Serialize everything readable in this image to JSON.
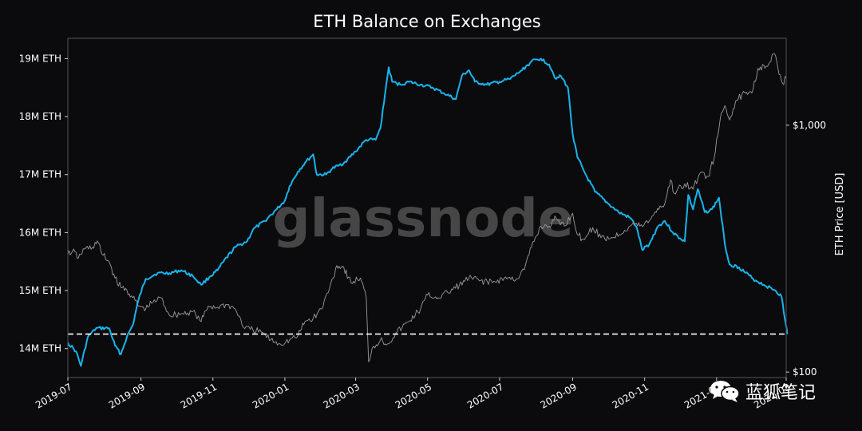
{
  "chart_data": {
    "type": "line",
    "title": "ETH Balance on Exchanges",
    "brand_watermark": "glassnode",
    "ylabel_left": "",
    "ylabel_right": "ETH Price [USD]",
    "y_left_ticks": [
      "14M ETH",
      "15M ETH",
      "16M ETH",
      "17M ETH",
      "18M ETH",
      "19M ETH"
    ],
    "y_left_tick_values": [
      14000000,
      15000000,
      16000000,
      17000000,
      18000000,
      19000000
    ],
    "y_left_range": [
      13500000,
      19350000
    ],
    "y_right_ticks": [
      "$100",
      "$1,000"
    ],
    "y_right_tick_values": [
      100,
      1000
    ],
    "y_right_scale": "log",
    "y_right_range": [
      95,
      2250
    ],
    "x_ticks": [
      "2019-07",
      "2019-09",
      "2019-11",
      "2020-01",
      "2020-03",
      "2020-05",
      "2020-07",
      "2020-09",
      "2020-11",
      "2021-01",
      "2021-03"
    ],
    "x_tick_dates": [
      "2019-07-01",
      "2019-09-01",
      "2019-11-01",
      "2020-01-01",
      "2020-03-01",
      "2020-05-01",
      "2020-07-01",
      "2020-09-01",
      "2020-11-01",
      "2021-01-01",
      "2021-03-01"
    ],
    "x_range": [
      "2019-07-01",
      "2021-03-01"
    ],
    "reference_line": {
      "value": 14250000,
      "style": "dashed",
      "color": "#ffffff"
    },
    "grid": false,
    "series": [
      {
        "axis": "left",
        "color": "#18b4ec",
        "points": [
          [
            "2019-07-01",
            14100000
          ],
          [
            "2019-07-08",
            13950000
          ],
          [
            "2019-07-12",
            13700000
          ],
          [
            "2019-07-18",
            14200000
          ],
          [
            "2019-07-25",
            14350000
          ],
          [
            "2019-08-05",
            14350000
          ],
          [
            "2019-08-10",
            14050000
          ],
          [
            "2019-08-15",
            13900000
          ],
          [
            "2019-08-20",
            14200000
          ],
          [
            "2019-08-25",
            14400000
          ],
          [
            "2019-08-30",
            14850000
          ],
          [
            "2019-09-05",
            15200000
          ],
          [
            "2019-09-15",
            15300000
          ],
          [
            "2019-09-25",
            15300000
          ],
          [
            "2019-10-05",
            15350000
          ],
          [
            "2019-10-15",
            15250000
          ],
          [
            "2019-10-22",
            15100000
          ],
          [
            "2019-10-30",
            15250000
          ],
          [
            "2019-11-05",
            15350000
          ],
          [
            "2019-11-10",
            15500000
          ],
          [
            "2019-11-20",
            15750000
          ],
          [
            "2019-11-30",
            15850000
          ],
          [
            "2019-12-05",
            16050000
          ],
          [
            "2019-12-15",
            16200000
          ],
          [
            "2019-12-25",
            16400000
          ],
          [
            "2020-01-01",
            16550000
          ],
          [
            "2020-01-05",
            16800000
          ],
          [
            "2020-01-12",
            17050000
          ],
          [
            "2020-01-18",
            17200000
          ],
          [
            "2020-01-25",
            17350000
          ],
          [
            "2020-01-28",
            17000000
          ],
          [
            "2020-02-05",
            17000000
          ],
          [
            "2020-02-10",
            17100000
          ],
          [
            "2020-02-15",
            17150000
          ],
          [
            "2020-02-20",
            17200000
          ],
          [
            "2020-03-01",
            17400000
          ],
          [
            "2020-03-10",
            17600000
          ],
          [
            "2020-03-18",
            17600000
          ],
          [
            "2020-03-22",
            17800000
          ],
          [
            "2020-03-26",
            18400000
          ],
          [
            "2020-03-29",
            18850000
          ],
          [
            "2020-04-01",
            18600000
          ],
          [
            "2020-04-08",
            18550000
          ],
          [
            "2020-04-15",
            18600000
          ],
          [
            "2020-04-25",
            18550000
          ],
          [
            "2020-05-05",
            18500000
          ],
          [
            "2020-05-15",
            18400000
          ],
          [
            "2020-05-25",
            18300000
          ],
          [
            "2020-05-30",
            18700000
          ],
          [
            "2020-06-05",
            18800000
          ],
          [
            "2020-06-10",
            18600000
          ],
          [
            "2020-06-20",
            18550000
          ],
          [
            "2020-07-01",
            18600000
          ],
          [
            "2020-07-10",
            18650000
          ],
          [
            "2020-07-20",
            18800000
          ],
          [
            "2020-07-28",
            18950000
          ],
          [
            "2020-08-05",
            19000000
          ],
          [
            "2020-08-12",
            18900000
          ],
          [
            "2020-08-18",
            18650000
          ],
          [
            "2020-08-22",
            18700000
          ],
          [
            "2020-08-28",
            18500000
          ],
          [
            "2020-09-01",
            17700000
          ],
          [
            "2020-09-05",
            17300000
          ],
          [
            "2020-09-12",
            17000000
          ],
          [
            "2020-09-20",
            16700000
          ],
          [
            "2020-10-01",
            16500000
          ],
          [
            "2020-10-10",
            16350000
          ],
          [
            "2020-10-20",
            16250000
          ],
          [
            "2020-10-25",
            16100000
          ],
          [
            "2020-10-30",
            15700000
          ],
          [
            "2020-11-05",
            15800000
          ],
          [
            "2020-11-12",
            16100000
          ],
          [
            "2020-11-18",
            16200000
          ],
          [
            "2020-11-25",
            16000000
          ],
          [
            "2020-12-01",
            15900000
          ],
          [
            "2020-12-05",
            15850000
          ],
          [
            "2020-12-08",
            16650000
          ],
          [
            "2020-12-12",
            16400000
          ],
          [
            "2020-12-16",
            16750000
          ],
          [
            "2020-12-22",
            16350000
          ],
          [
            "2020-12-28",
            16400000
          ],
          [
            "2021-01-03",
            16600000
          ],
          [
            "2021-01-08",
            15800000
          ],
          [
            "2021-01-12",
            15450000
          ],
          [
            "2021-01-20",
            15400000
          ],
          [
            "2021-02-01",
            15200000
          ],
          [
            "2021-02-10",
            15100000
          ],
          [
            "2021-02-20",
            15000000
          ],
          [
            "2021-02-25",
            14900000
          ],
          [
            "2021-02-28",
            14500000
          ],
          [
            "2021-03-02",
            14250000
          ]
        ]
      },
      {
        "axis": "right",
        "color": "#9a9a9a",
        "points": [
          [
            "2019-07-01",
            300
          ],
          [
            "2019-07-05",
            310
          ],
          [
            "2019-07-10",
            290
          ],
          [
            "2019-07-15",
            315
          ],
          [
            "2019-07-22",
            320
          ],
          [
            "2019-07-26",
            340
          ],
          [
            "2019-07-30",
            300
          ],
          [
            "2019-08-05",
            280
          ],
          [
            "2019-08-10",
            240
          ],
          [
            "2019-08-15",
            220
          ],
          [
            "2019-08-20",
            215
          ],
          [
            "2019-08-25",
            200
          ],
          [
            "2019-08-30",
            185
          ],
          [
            "2019-09-05",
            180
          ],
          [
            "2019-09-10",
            190
          ],
          [
            "2019-09-18",
            200
          ],
          [
            "2019-09-25",
            170
          ],
          [
            "2019-10-05",
            172
          ],
          [
            "2019-10-15",
            176
          ],
          [
            "2019-10-22",
            160
          ],
          [
            "2019-10-28",
            185
          ],
          [
            "2019-11-05",
            183
          ],
          [
            "2019-11-12",
            188
          ],
          [
            "2019-11-20",
            180
          ],
          [
            "2019-11-28",
            150
          ],
          [
            "2019-12-05",
            148
          ],
          [
            "2019-12-12",
            145
          ],
          [
            "2019-12-20",
            135
          ],
          [
            "2019-12-28",
            130
          ],
          [
            "2020-01-05",
            135
          ],
          [
            "2020-01-12",
            140
          ],
          [
            "2020-01-18",
            160
          ],
          [
            "2020-01-25",
            165
          ],
          [
            "2020-02-01",
            180
          ],
          [
            "2020-02-08",
            220
          ],
          [
            "2020-02-14",
            270
          ],
          [
            "2020-02-20",
            265
          ],
          [
            "2020-02-26",
            230
          ],
          [
            "2020-03-05",
            240
          ],
          [
            "2020-03-10",
            200
          ],
          [
            "2020-03-12",
            110
          ],
          [
            "2020-03-15",
            125
          ],
          [
            "2020-03-22",
            135
          ],
          [
            "2020-03-28",
            130
          ],
          [
            "2020-04-05",
            145
          ],
          [
            "2020-04-15",
            160
          ],
          [
            "2020-04-25",
            180
          ],
          [
            "2020-05-01",
            205
          ],
          [
            "2020-05-10",
            200
          ],
          [
            "2020-05-18",
            210
          ],
          [
            "2020-05-28",
            225
          ],
          [
            "2020-06-05",
            240
          ],
          [
            "2020-06-15",
            235
          ],
          [
            "2020-06-25",
            230
          ],
          [
            "2020-07-05",
            240
          ],
          [
            "2020-07-15",
            238
          ],
          [
            "2020-07-22",
            260
          ],
          [
            "2020-07-28",
            320
          ],
          [
            "2020-08-05",
            390
          ],
          [
            "2020-08-12",
            390
          ],
          [
            "2020-08-18",
            420
          ],
          [
            "2020-08-25",
            390
          ],
          [
            "2020-09-01",
            440
          ],
          [
            "2020-09-05",
            360
          ],
          [
            "2020-09-10",
            345
          ],
          [
            "2020-09-18",
            385
          ],
          [
            "2020-09-25",
            350
          ],
          [
            "2020-10-05",
            350
          ],
          [
            "2020-10-15",
            375
          ],
          [
            "2020-10-22",
            400
          ],
          [
            "2020-10-28",
            390
          ],
          [
            "2020-11-05",
            410
          ],
          [
            "2020-11-12",
            460
          ],
          [
            "2020-11-18",
            480
          ],
          [
            "2020-11-23",
            600
          ],
          [
            "2020-11-26",
            530
          ],
          [
            "2020-12-05",
            580
          ],
          [
            "2020-12-12",
            550
          ],
          [
            "2020-12-18",
            640
          ],
          [
            "2020-12-25",
            620
          ],
          [
            "2020-12-30",
            740
          ],
          [
            "2021-01-04",
            1050
          ],
          [
            "2021-01-08",
            1200
          ],
          [
            "2021-01-12",
            1050
          ],
          [
            "2021-01-17",
            1250
          ],
          [
            "2021-01-25",
            1350
          ],
          [
            "2021-02-01",
            1400
          ],
          [
            "2021-02-05",
            1700
          ],
          [
            "2021-02-10",
            1750
          ],
          [
            "2021-02-15",
            1800
          ],
          [
            "2021-02-19",
            1950
          ],
          [
            "2021-02-22",
            1700
          ],
          [
            "2021-02-26",
            1480
          ],
          [
            "2021-03-01",
            1550
          ]
        ]
      }
    ]
  },
  "watermark": {
    "text": "蓝狐笔记"
  }
}
